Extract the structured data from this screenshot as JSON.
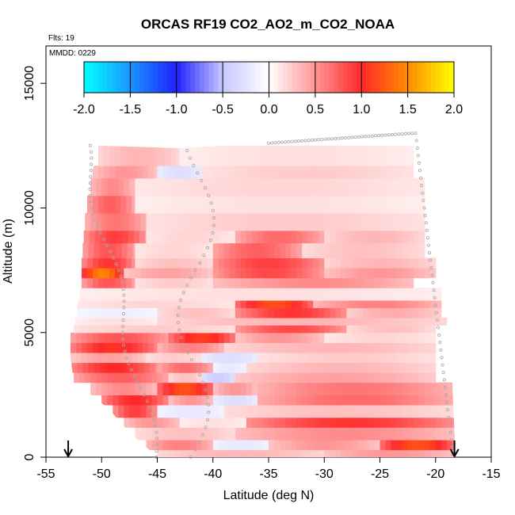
{
  "chart_data": {
    "type": "heatmap",
    "title": "ORCAS RF19 CO2_AO2_m_CO2_NOAA",
    "flights_label": "Flts: 19",
    "date_label": "MMDD: 0229",
    "xlabel": "Latitude (deg N)",
    "ylabel": "Altitude (m)",
    "xlim": [
      -55,
      -15
    ],
    "ylim": [
      0,
      16500
    ],
    "x_ticks": [
      -55,
      -50,
      -45,
      -40,
      -35,
      -30,
      -25,
      -20,
      -15
    ],
    "y_ticks": [
      0,
      5000,
      10000,
      15000
    ],
    "colorbar": {
      "range": [
        -2.0,
        2.0
      ],
      "ticks": [
        "-2.0",
        "-1.5",
        "-1.0",
        "-0.5",
        "0.0",
        "0.5",
        "1.0",
        "1.5",
        "2.0"
      ],
      "colors": [
        "#00ffff",
        "#1a66ff",
        "#2020ff",
        "#ffffff",
        "#ff2020",
        "#ffff00"
      ]
    },
    "arrows_at_latitude": [
      -53,
      -18.3
    ],
    "flight_track_note": "grey circles show the aircraft flight track",
    "domain_left_edge": [
      [
        0,
        -45
      ],
      [
        1000,
        -47.5
      ],
      [
        2000,
        -49.5
      ],
      [
        3000,
        -52.5
      ],
      [
        4000,
        -52.8
      ],
      [
        5000,
        -52.8
      ],
      [
        5500,
        -52.4
      ],
      [
        7000,
        -51.8
      ],
      [
        8500,
        -51.8
      ],
      [
        10500,
        -51.3
      ],
      [
        12500,
        -50.3
      ]
    ],
    "domain_right_edge": [
      [
        0,
        -18.2
      ],
      [
        3000,
        -18.5
      ],
      [
        5000,
        -18.8
      ],
      [
        8000,
        -19.2
      ],
      [
        10000,
        -20.0
      ],
      [
        12000,
        -21.0
      ],
      [
        13000,
        -21.5
      ]
    ],
    "domain_top_edge": [
      [
        -50.3,
        12500
      ],
      [
        -43,
        12400
      ],
      [
        -35,
        12600
      ],
      [
        -28,
        12800
      ],
      [
        -21.5,
        13000
      ]
    ],
    "layers": [
      {
        "alt": [
          0,
          300
        ],
        "segments": [
          [
            -45,
            -30,
            0.35
          ],
          [
            -30,
            -18.2,
            0.5
          ]
        ]
      },
      {
        "alt": [
          300,
          700
        ],
        "segments": [
          [
            -46,
            -40,
            0.6
          ],
          [
            -40,
            -35,
            -0.2
          ],
          [
            -35,
            -25,
            0.5
          ],
          [
            -25,
            -18.2,
            1.2
          ]
        ]
      },
      {
        "alt": [
          700,
          1200
        ],
        "segments": [
          [
            -47,
            -38,
            0.3
          ],
          [
            -38,
            -18.2,
            0.55
          ]
        ]
      },
      {
        "alt": [
          1200,
          1600
        ],
        "segments": [
          [
            -48,
            -43,
            0.5
          ],
          [
            -43,
            -37,
            0.15
          ],
          [
            -37,
            -18.2,
            0.95
          ]
        ]
      },
      {
        "alt": [
          1600,
          2100
        ],
        "segments": [
          [
            -49,
            -45,
            0.9
          ],
          [
            -45,
            -39,
            -0.2
          ],
          [
            -39,
            -18.3,
            0.3
          ]
        ]
      },
      {
        "alt": [
          2100,
          2500
        ],
        "segments": [
          [
            -50,
            -44,
            1.0
          ],
          [
            -44,
            -40,
            0.5
          ],
          [
            -40,
            -36,
            -0.3
          ],
          [
            -36,
            -18.3,
            0.7
          ]
        ]
      },
      {
        "alt": [
          2500,
          3000
        ],
        "segments": [
          [
            -51,
            -45,
            0.55
          ],
          [
            -45,
            -40,
            1.2
          ],
          [
            -40,
            -36,
            0.5
          ],
          [
            -36,
            -18.4,
            0.65
          ]
        ]
      },
      {
        "alt": [
          3000,
          3400
        ],
        "segments": [
          [
            -52.5,
            -44,
            0.75
          ],
          [
            -44,
            -41,
            0.3
          ],
          [
            -41,
            -38,
            -0.45
          ],
          [
            -38,
            -20,
            0.45
          ]
        ]
      },
      {
        "alt": [
          3400,
          3800
        ],
        "segments": [
          [
            -52.7,
            -45,
            1.0
          ],
          [
            -45,
            -40,
            0.7
          ],
          [
            -40,
            -37,
            -0.2
          ],
          [
            -37,
            -20,
            0.35
          ]
        ]
      },
      {
        "alt": [
          3800,
          4200
        ],
        "segments": [
          [
            -52.8,
            -46,
            0.45
          ],
          [
            -46,
            -41,
            0.25
          ],
          [
            -41,
            -36,
            -0.3
          ],
          [
            -36,
            -20,
            0.25
          ]
        ]
      },
      {
        "alt": [
          4200,
          4600
        ],
        "segments": [
          [
            -52.8,
            -45,
            1.05
          ],
          [
            -45,
            -39,
            0.6
          ],
          [
            -39,
            -20,
            0.35
          ]
        ]
      },
      {
        "alt": [
          4600,
          5000
        ],
        "segments": [
          [
            -52.8,
            -44,
            0.8
          ],
          [
            -44,
            -38,
            1.1
          ],
          [
            -38,
            -30,
            0.5
          ],
          [
            -30,
            -20,
            0.2
          ]
        ]
      },
      {
        "alt": [
          5000,
          5300
        ],
        "segments": [
          [
            -52.5,
            -38,
            0.25
          ],
          [
            -38,
            -28,
            0.85
          ],
          [
            -28,
            -20,
            0.3
          ]
        ]
      },
      {
        "alt": [
          5300,
          5600
        ],
        "segments": [
          [
            -52.4,
            -45,
            0.15
          ],
          [
            -45,
            -19,
            0.35
          ]
        ]
      },
      {
        "alt": [
          5600,
          6000
        ],
        "segments": [
          [
            -52.2,
            -45,
            -0.15
          ],
          [
            -45,
            -38,
            0.3
          ],
          [
            -38,
            -28,
            0.95
          ],
          [
            -28,
            -19.5,
            0.4
          ]
        ]
      },
      {
        "alt": [
          6000,
          6300
        ],
        "segments": [
          [
            -52.2,
            -38,
            0.2
          ],
          [
            -38,
            -31,
            1.2
          ],
          [
            -31,
            -19.5,
            0.6
          ]
        ]
      },
      {
        "alt": [
          6300,
          6800
        ],
        "segments": [
          [
            -52.0,
            -19.5,
            0.15
          ]
        ]
      },
      {
        "alt": [
          6800,
          7200
        ],
        "segments": [
          [
            -51.8,
            -47,
            0.8
          ],
          [
            -47,
            -40,
            0.25
          ],
          [
            -40,
            -22,
            0.55
          ]
        ]
      },
      {
        "alt": [
          7200,
          7600
        ],
        "segments": [
          [
            -51.8,
            -48,
            1.45
          ],
          [
            -48,
            -40,
            0.45
          ],
          [
            -40,
            -30,
            0.85
          ],
          [
            -30,
            -20,
            0.5
          ]
        ]
      },
      {
        "alt": [
          7600,
          8000
        ],
        "segments": [
          [
            -51.8,
            -47,
            0.95
          ],
          [
            -47,
            -40,
            0.3
          ],
          [
            -40,
            -30,
            0.9
          ],
          [
            -30,
            -20,
            0.35
          ]
        ]
      },
      {
        "alt": [
          8000,
          8600
        ],
        "segments": [
          [
            -51.7,
            -47,
            0.8
          ],
          [
            -47,
            -40,
            0.2
          ],
          [
            -40,
            -32,
            0.75
          ],
          [
            -32,
            -21,
            0.3
          ]
        ]
      },
      {
        "alt": [
          8600,
          9100
        ],
        "segments": [
          [
            -51.6,
            -46,
            0.9
          ],
          [
            -46,
            -38,
            0.2
          ],
          [
            -38,
            -30,
            0.7
          ],
          [
            -30,
            -21,
            0.35
          ]
        ]
      },
      {
        "alt": [
          9100,
          9800
        ],
        "segments": [
          [
            -51.5,
            -46,
            0.65
          ],
          [
            -46,
            -21,
            0.25
          ]
        ]
      },
      {
        "alt": [
          9800,
          10500
        ],
        "segments": [
          [
            -51.3,
            -47,
            0.75
          ],
          [
            -47,
            -21,
            0.15
          ]
        ]
      },
      {
        "alt": [
          10500,
          11200
        ],
        "segments": [
          [
            -51.0,
            -47,
            0.55
          ],
          [
            -47,
            -21,
            0.2
          ]
        ]
      },
      {
        "alt": [
          11200,
          11700
        ],
        "segments": [
          [
            -50.8,
            -45,
            0.5
          ],
          [
            -45,
            -41,
            -0.3
          ],
          [
            -41,
            -22,
            0.25
          ]
        ]
      },
      {
        "alt": [
          11700,
          12500
        ],
        "segments": [
          [
            -50.3,
            -43,
            0.35
          ],
          [
            -43,
            -22,
            0.15
          ]
        ]
      }
    ]
  }
}
